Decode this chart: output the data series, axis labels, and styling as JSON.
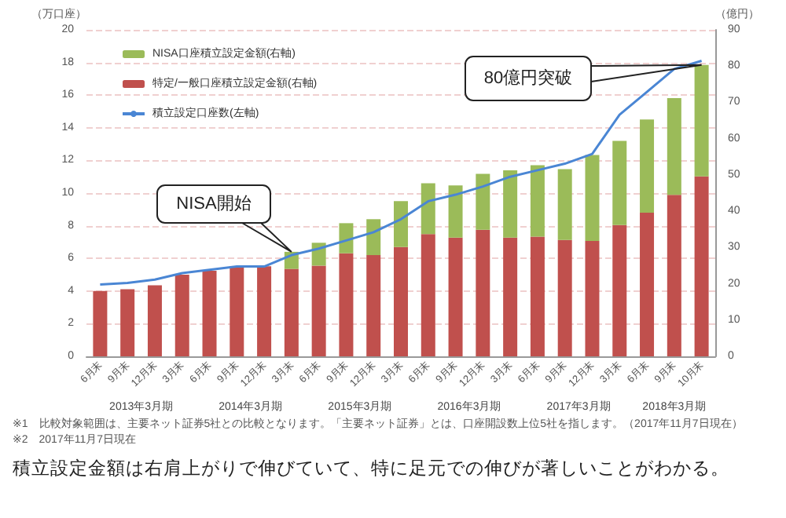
{
  "chart_data": {
    "type": "bar",
    "stacked": true,
    "ylabel": "（万口座）",
    "y2label": "（億円）",
    "categories": [
      "6月末",
      "9月末",
      "12月末",
      "3月末",
      "6月末",
      "9月末",
      "12月末",
      "3月末",
      "6月末",
      "9月末",
      "12月末",
      "3月末",
      "6月末",
      "9月末",
      "12月末",
      "3月末",
      "6月末",
      "9月末",
      "12月末",
      "3月末",
      "6月末",
      "9月末",
      "10月末"
    ],
    "ylim": [
      0,
      20
    ],
    "yticks": [
      0,
      2,
      4,
      6,
      8,
      10,
      12,
      14,
      16,
      18,
      20
    ],
    "y2lim": [
      0,
      90
    ],
    "y2ticks": [
      0,
      10,
      20,
      30,
      40,
      50,
      60,
      70,
      80,
      90
    ],
    "grid": "y",
    "legend": "top left",
    "series": [
      {
        "name": "特定/一般口座積立設定金額(右軸)",
        "axis": "y2",
        "color": "#c0504d",
        "values": [
          18,
          18.5,
          19.6,
          22.5,
          23.6,
          24.8,
          24.8,
          24.1,
          25,
          28.4,
          27.9,
          30.1,
          33.7,
          32.7,
          34.9,
          32.7,
          33,
          32.1,
          31.8,
          36.2,
          39.6,
          44.5,
          49.6
        ]
      },
      {
        "name": "NISA口座積立設定金額(右軸)",
        "axis": "y2",
        "color": "#9bbb59",
        "values": [
          null,
          null,
          null,
          null,
          null,
          null,
          null,
          4.7,
          6.3,
          8.3,
          9.9,
          12.7,
          14,
          14.4,
          15.4,
          18.6,
          19.7,
          19.5,
          23.7,
          23.2,
          25.7,
          26.7,
          30.7
        ]
      },
      {
        "name": "積立設定口座数(左軸)",
        "type": "line",
        "color": "#4a86d4",
        "marker": "none",
        "values": [
          4.4,
          4.5,
          4.7,
          5.1,
          5.3,
          5.5,
          5.5,
          6.2,
          6.6,
          7.1,
          7.6,
          8.4,
          9.5,
          9.9,
          10.4,
          11,
          11.4,
          11.8,
          12.4,
          14.8,
          16.2,
          17.6,
          18.1
        ]
      }
    ],
    "annotations": [
      "2013年3月期",
      "2014年3月期",
      "2015年3月期",
      "2016年3月期",
      "2017年3月期",
      "2018年3月期",
      "NISA開始",
      "80億円突破",
      "※1　比較対象範囲は、主要ネット証券5社との比較となります。「主要ネット証券」とは、口座開設数上位5社を指します。（2017年11月7日現在）",
      "※2　2017年11月7日現在",
      "積立設定金額は右肩上がりで伸びていて、特に足元での伸びが著しいことがわかる。"
    ]
  }
}
